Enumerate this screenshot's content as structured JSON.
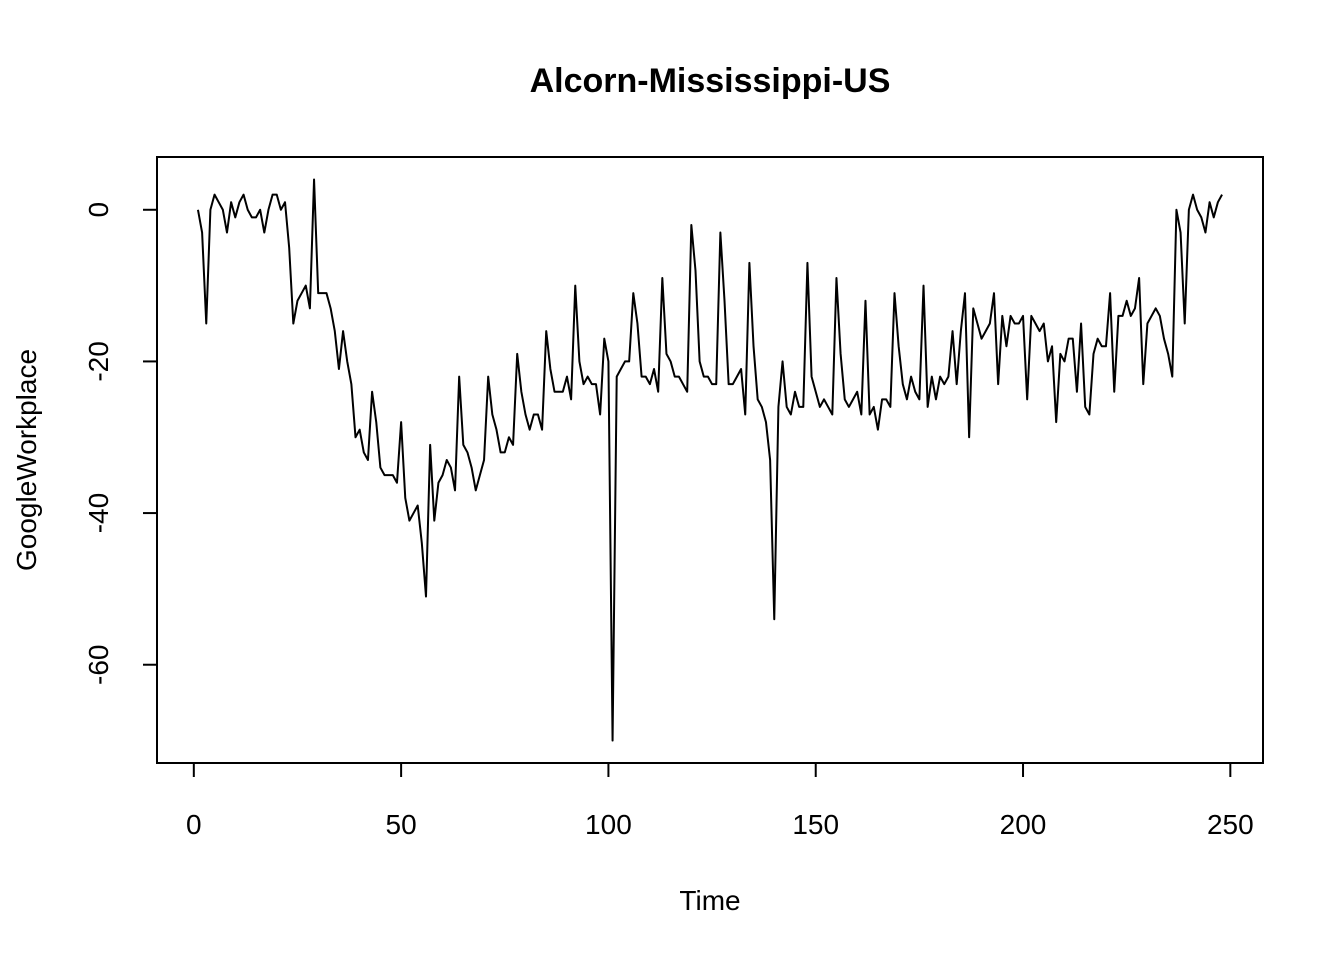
{
  "chart_data": {
    "type": "line",
    "title": "Alcorn-Mississippi-US",
    "x_label": "Time",
    "y_label": "GoogleWorkplace",
    "x": [
      1,
      2,
      3,
      4,
      5,
      6,
      7,
      8,
      9,
      10,
      11,
      12,
      13,
      14,
      15,
      16,
      17,
      18,
      19,
      20,
      21,
      22,
      23,
      24,
      25,
      26,
      27,
      28,
      29,
      30,
      31,
      32,
      33,
      34,
      35,
      36,
      37,
      38,
      39,
      40,
      41,
      42,
      43,
      44,
      45,
      46,
      47,
      48,
      49,
      50,
      51,
      52,
      53,
      54,
      55,
      56,
      57,
      58,
      59,
      60,
      61,
      62,
      63,
      64,
      65,
      66,
      67,
      68,
      69,
      70,
      71,
      72,
      73,
      74,
      75,
      76,
      77,
      78,
      79,
      80,
      81,
      82,
      83,
      84,
      85,
      86,
      87,
      88,
      89,
      90,
      91,
      92,
      93,
      94,
      95,
      96,
      97,
      98,
      99,
      100,
      101,
      102,
      103,
      104,
      105,
      106,
      107,
      108,
      109,
      110,
      111,
      112,
      113,
      114,
      115,
      116,
      117,
      118,
      119,
      120,
      121,
      122,
      123,
      124,
      125,
      126,
      127,
      128,
      129,
      130,
      131,
      132,
      133,
      134,
      135,
      136,
      137,
      138,
      139,
      140,
      141,
      142,
      143,
      144,
      145,
      146,
      147,
      148,
      149,
      150,
      151,
      152,
      153,
      154,
      155,
      156,
      157,
      158,
      159,
      160,
      161,
      162,
      163,
      164,
      165,
      166,
      167,
      168,
      169,
      170,
      171,
      172,
      173,
      174,
      175,
      176,
      177,
      178,
      179,
      180,
      181,
      182,
      183,
      184,
      185,
      186,
      187,
      188,
      189,
      190,
      191,
      192,
      193,
      194,
      195,
      196,
      197,
      198,
      199,
      200,
      201,
      202,
      203,
      204,
      205,
      206,
      207,
      208,
      209,
      210,
      211,
      212,
      213,
      214,
      215,
      216,
      217,
      218,
      219,
      220,
      221,
      222,
      223,
      224,
      225,
      226,
      227,
      228,
      229,
      230,
      231,
      232,
      233,
      234,
      235,
      236,
      237,
      238,
      239,
      240,
      241,
      242,
      243,
      244,
      245,
      246,
      247,
      248
    ],
    "series": [
      {
        "name": "GoogleWorkplace",
        "color": "#000000",
        "values": [
          0,
          -3,
          -15,
          0,
          2,
          1,
          0,
          -3,
          1,
          -1,
          1,
          2,
          0,
          -1,
          -1,
          0,
          -3,
          0,
          2,
          2,
          0,
          1,
          -5,
          -15,
          -12,
          -11,
          -10,
          -13,
          4,
          -11,
          -11,
          -11,
          -13,
          -16,
          -21,
          -16,
          -20,
          -23,
          -30,
          -29,
          -32,
          -33,
          -24,
          -28,
          -34,
          -35,
          -35,
          -35,
          -36,
          -28,
          -38,
          -41,
          -40,
          -39,
          -44,
          -51,
          -31,
          -41,
          -36,
          -35,
          -33,
          -34,
          -37,
          -22,
          -31,
          -32,
          -34,
          -37,
          -35,
          -33,
          -22,
          -27,
          -29,
          -32,
          -32,
          -30,
          -31,
          -19,
          -24,
          -27,
          -29,
          -27,
          -27,
          -29,
          -16,
          -21,
          -24,
          -24,
          -24,
          -22,
          -25,
          -10,
          -20,
          -23,
          -22,
          -23,
          -23,
          -27,
          -17,
          -20,
          -70,
          -22,
          -21,
          -20,
          -20,
          -11,
          -15,
          -22,
          -22,
          -23,
          -21,
          -24,
          -9,
          -19,
          -20,
          -22,
          -22,
          -23,
          -24,
          -2,
          -8,
          -20,
          -22,
          -22,
          -23,
          -23,
          -3,
          -12,
          -23,
          -23,
          -22,
          -21,
          -27,
          -7,
          -18,
          -25,
          -26,
          -28,
          -33,
          -54,
          -26,
          -20,
          -26,
          -27,
          -24,
          -26,
          -26,
          -7,
          -22,
          -24,
          -26,
          -25,
          -26,
          -27,
          -9,
          -19,
          -25,
          -26,
          -25,
          -24,
          -27,
          -12,
          -27,
          -26,
          -29,
          -25,
          -25,
          -26,
          -11,
          -18,
          -23,
          -25,
          -22,
          -24,
          -25,
          -10,
          -26,
          -22,
          -25,
          -22,
          -23,
          -22,
          -16,
          -23,
          -16,
          -11,
          -30,
          -13,
          -15,
          -17,
          -16,
          -15,
          -11,
          -23,
          -14,
          -18,
          -14,
          -15,
          -15,
          -14,
          -25,
          -14,
          -15,
          -16,
          -15,
          -20,
          -18,
          -28,
          -19,
          -20,
          -17,
          -17,
          -24,
          -15,
          -26,
          -27,
          -19,
          -17,
          -18,
          -18,
          -11,
          -24,
          -14,
          -14,
          -12,
          -14,
          -13,
          -9,
          -23,
          -15,
          -14,
          -13,
          -14,
          -17,
          -19,
          -22,
          0,
          -3,
          -15,
          0,
          2,
          0,
          -1,
          -3,
          1,
          -1,
          1,
          2
        ]
      }
    ],
    "xlim": [
      -8.88,
      257.88
    ],
    "ylim": [
      -72.96,
      6.96
    ],
    "xticks": [
      0,
      50,
      100,
      150,
      200,
      250
    ],
    "yticks": [
      -60,
      -40,
      -20,
      0
    ]
  }
}
